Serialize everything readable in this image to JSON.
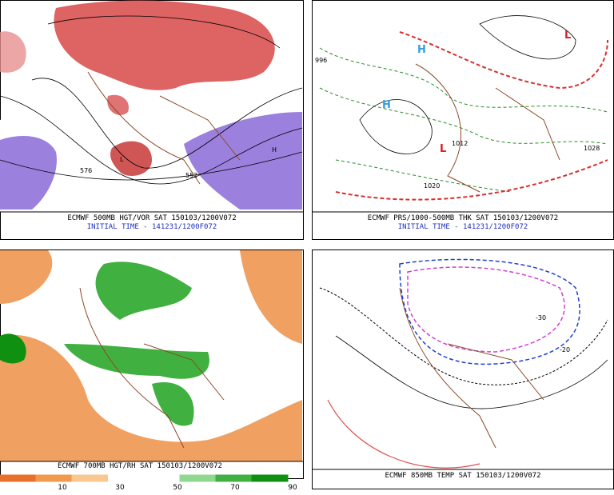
{
  "panels": [
    {
      "caption": "ECMWF 500MB HGT/VOR SAT 150103/1200V072",
      "initial_time": "INITIAL TIME - 141231/1200F072",
      "labels": [
        "576",
        "552",
        "H",
        "L"
      ]
    },
    {
      "caption": "ECMWF PRS/1000-500MB THK SAT 150103/1200V072",
      "initial_time": "INITIAL TIME - 141231/1200F072",
      "labels": [
        "H",
        "H",
        "L",
        "L",
        "1020",
        "1012",
        "1028",
        "996"
      ]
    },
    {
      "caption": "ECMWF 700MB HGT/RH SAT 150103/1200V072"
    },
    {
      "caption": "ECMWF 850MB TEMP SAT 150103/1200V072",
      "labels": [
        "-30",
        "-20"
      ]
    }
  ],
  "legend": {
    "ticks": [
      10,
      30,
      50,
      70,
      90
    ],
    "colors": [
      "#e8702a",
      "#f09a4e",
      "#f8c890",
      "#ffffff",
      "#ffffff",
      "#90d890",
      "#40b040",
      "#109010"
    ]
  }
}
